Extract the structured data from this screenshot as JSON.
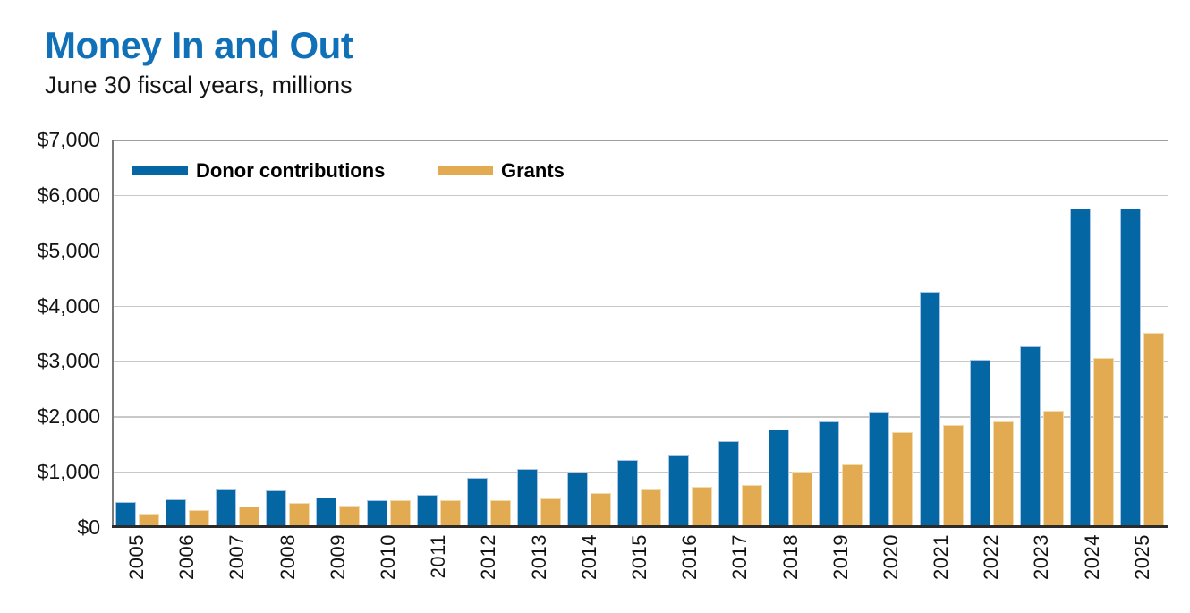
{
  "header": {
    "title": "Money In and Out",
    "subtitle": "June 30 fiscal years, millions"
  },
  "colors": {
    "title_blue": "#1070b8",
    "donor_bar": "#0566a4",
    "grants_bar": "#e2ab52",
    "gridline": "#c8c8c8",
    "top_border": "#9e9e9e",
    "left_axis": "#7b7b7b",
    "bottom_axis": "#2b2b2b"
  },
  "legend": {
    "items": [
      {
        "label": "Donor contributions",
        "color": "#0566a4"
      },
      {
        "label": "Grants",
        "color": "#e2ab52"
      }
    ]
  },
  "chart_data": {
    "type": "bar",
    "title": "Money In and Out",
    "subtitle": "June 30 fiscal years, millions",
    "units": "USD millions",
    "categories": [
      "2005",
      "2006",
      "2007",
      "2008",
      "2009",
      "2010",
      "2011",
      "2012",
      "2013",
      "2014",
      "2015",
      "2016",
      "2017",
      "2018",
      "2019",
      "2020",
      "2021",
      "2022",
      "2023",
      "2024",
      "2025"
    ],
    "series": [
      {
        "name": "Donor contributions",
        "color": "#0566a4",
        "values": [
          450,
          500,
          690,
          665,
          530,
          480,
          575,
          890,
          1045,
          990,
          1220,
          1290,
          1550,
          1760,
          1900,
          2090,
          4260,
          3030,
          3260,
          5750,
          5750
        ]
      },
      {
        "name": "Grants",
        "color": "#e2ab52",
        "values": [
          240,
          310,
          375,
          435,
          390,
          490,
          480,
          480,
          520,
          610,
          700,
          720,
          760,
          1000,
          1130,
          1715,
          1850,
          1900,
          2100,
          3060,
          3510
        ]
      }
    ],
    "xlabel": "",
    "ylabel": "",
    "ylim": [
      0,
      7000
    ],
    "ytick_step": 1000,
    "ytick_labels_top_to_bottom": [
      "$7,000",
      "$6,000",
      "$5,000",
      "$4,000",
      "$3,000",
      "$2,000",
      "$1,000",
      "$0"
    ],
    "grid": true,
    "legend_position": "inside-top-left",
    "x_tick_rotation_degrees": 90
  }
}
